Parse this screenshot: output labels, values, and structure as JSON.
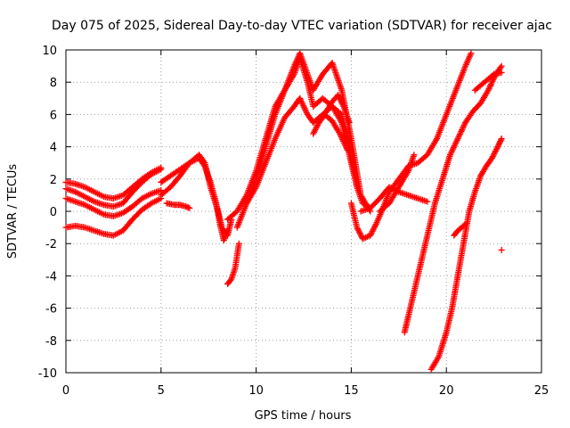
{
  "chart_data": {
    "type": "scatter",
    "title": "Day 075 of 2025, Sidereal Day-to-day VTEC variation (SDTVAR) for receiver ajac",
    "xlabel": "GPS time / hours",
    "ylabel": "SDTVAR / TECUs",
    "xlim": [
      0,
      25
    ],
    "ylim": [
      -10,
      10
    ],
    "x_ticks": [
      0,
      5,
      10,
      15,
      20,
      25
    ],
    "y_ticks": [
      -10,
      -8,
      -6,
      -4,
      -2,
      0,
      2,
      4,
      6,
      8,
      10
    ],
    "x_tick_labels": [
      "0",
      "5",
      "10",
      "15",
      "20",
      "25"
    ],
    "y_tick_labels": [
      "-10",
      "-8",
      "-6",
      "-4",
      "-2",
      "0",
      "2",
      "4",
      "6",
      "8",
      "10"
    ],
    "grid": true,
    "marker": "+",
    "color": "#ff0000",
    "series": [
      {
        "x": [
          0.0,
          0.5,
          1.0,
          1.5,
          2.0,
          2.5,
          3.0,
          3.5,
          4.0,
          4.5,
          5.0
        ],
        "y": [
          -1.0,
          -0.9,
          -1.0,
          -1.2,
          -1.4,
          -1.5,
          -1.2,
          -0.5,
          0.1,
          0.5,
          0.8
        ]
      },
      {
        "x": [
          0.0,
          0.5,
          1.0,
          1.5,
          2.0,
          2.5,
          3.0,
          3.5,
          4.0,
          4.5,
          5.0
        ],
        "y": [
          0.8,
          0.6,
          0.4,
          0.1,
          -0.2,
          -0.3,
          -0.1,
          0.3,
          0.8,
          1.1,
          1.3
        ]
      },
      {
        "x": [
          0.0,
          0.5,
          1.0,
          1.5,
          2.0,
          2.5,
          3.0,
          3.5,
          4.0,
          4.5,
          5.0
        ],
        "y": [
          1.4,
          1.2,
          0.9,
          0.6,
          0.4,
          0.3,
          0.5,
          1.2,
          1.8,
          2.3,
          2.6
        ]
      },
      {
        "x": [
          0.0,
          0.5,
          1.0,
          1.5,
          2.0,
          2.5,
          3.0,
          3.5,
          4.0,
          4.5,
          5.0
        ],
        "y": [
          1.8,
          1.7,
          1.5,
          1.2,
          0.9,
          0.8,
          1.0,
          1.5,
          2.0,
          2.4,
          2.7
        ]
      },
      {
        "x": [
          5.0,
          5.5,
          6.0,
          6.5,
          7.0,
          7.3,
          7.6,
          8.0,
          8.2,
          8.5,
          8.7
        ],
        "y": [
          1.0,
          1.5,
          2.2,
          3.0,
          3.5,
          3.0,
          1.5,
          0.0,
          -1.0,
          -1.5,
          -0.5
        ]
      },
      {
        "x": [
          5.0,
          5.5,
          6.0,
          6.5,
          7.0,
          7.3,
          7.6,
          7.9,
          8.1,
          8.3,
          8.5
        ],
        "y": [
          1.8,
          2.2,
          2.6,
          3.0,
          3.3,
          2.8,
          1.8,
          0.5,
          -0.8,
          -1.8,
          -1.2
        ]
      },
      {
        "x": [
          5.3,
          5.7,
          6.0,
          6.3,
          6.5
        ],
        "y": [
          0.5,
          0.4,
          0.4,
          0.3,
          0.2
        ]
      },
      {
        "x": [
          8.5,
          8.7,
          8.9,
          9.1
        ],
        "y": [
          -4.5,
          -4.2,
          -3.5,
          -2.0
        ]
      },
      {
        "x": [
          8.5,
          9.0,
          9.5,
          10.0,
          10.5,
          11.0,
          11.5,
          12.0,
          12.3,
          12.7,
          13.0,
          13.5,
          14.0,
          14.5,
          15.0,
          15.3,
          15.6,
          16.0
        ],
        "y": [
          -0.5,
          0.0,
          1.0,
          2.5,
          4.5,
          6.5,
          7.5,
          8.5,
          9.5,
          8.0,
          6.5,
          7.0,
          6.5,
          6.0,
          3.5,
          1.5,
          0.5,
          0.2
        ]
      },
      {
        "x": [
          9.0,
          9.5,
          10.0,
          10.5,
          11.0,
          11.5,
          12.0,
          12.3,
          12.7,
          13.0,
          13.5,
          14.0,
          14.5,
          15.0,
          15.5,
          16.0
        ],
        "y": [
          -1.0,
          0.5,
          2.0,
          4.0,
          6.0,
          7.5,
          9.0,
          9.8,
          8.5,
          7.5,
          8.5,
          9.2,
          7.5,
          4.5,
          1.0,
          0.0
        ]
      },
      {
        "x": [
          9.5,
          10.0,
          10.5,
          11.0,
          11.5,
          12.0,
          12.3,
          12.7,
          13.0,
          13.5,
          14.0,
          14.5,
          15.0,
          15.3
        ],
        "y": [
          0.5,
          1.5,
          3.0,
          4.5,
          5.8,
          6.5,
          7.0,
          6.0,
          5.5,
          6.0,
          6.5,
          5.5,
          3.0,
          1.5
        ]
      },
      {
        "x": [
          13.3,
          13.7,
          14.0,
          14.3,
          14.6,
          14.9
        ],
        "y": [
          5.5,
          6.2,
          6.8,
          7.2,
          6.5,
          5.5
        ]
      },
      {
        "x": [
          13.0,
          13.3,
          13.6,
          14.0,
          14.4,
          14.8
        ],
        "y": [
          4.8,
          5.5,
          6.0,
          5.6,
          4.8,
          3.8
        ]
      },
      {
        "x": [
          15.0,
          15.3,
          15.6,
          16.0,
          16.3,
          16.6,
          17.0,
          17.5,
          18.0,
          18.5,
          19.0,
          19.5,
          20.0,
          20.5,
          21.0,
          21.3
        ],
        "y": [
          0.5,
          -1.0,
          -1.7,
          -1.5,
          -0.8,
          0.0,
          1.2,
          2.0,
          2.8,
          3.0,
          3.5,
          4.5,
          6.0,
          7.5,
          9.0,
          9.8
        ]
      },
      {
        "x": [
          15.5,
          16.0,
          16.5,
          17.0,
          17.5,
          18.0,
          18.5,
          19.0
        ],
        "y": [
          0.0,
          0.2,
          0.8,
          1.5,
          1.2,
          1.0,
          0.8,
          0.6
        ]
      },
      {
        "x": [
          16.5,
          17.0,
          17.5,
          18.0,
          18.3
        ],
        "y": [
          0.0,
          0.5,
          1.5,
          2.5,
          3.5
        ]
      },
      {
        "x": [
          17.8,
          18.0,
          18.3,
          18.6,
          19.0,
          19.4,
          19.8,
          20.2,
          20.6,
          21.0,
          21.4,
          21.8,
          22.2,
          22.6,
          22.9
        ],
        "y": [
          -7.5,
          -6.5,
          -5.0,
          -3.5,
          -1.5,
          0.5,
          2.0,
          3.5,
          4.5,
          5.5,
          6.2,
          6.7,
          7.5,
          8.5,
          9.0
        ]
      },
      {
        "x": [
          19.2,
          19.6,
          20.0,
          20.3,
          20.6,
          20.9,
          21.2,
          21.5,
          21.8,
          22.1,
          22.4,
          22.7,
          22.9
        ],
        "y": [
          -9.8,
          -9.0,
          -7.5,
          -6.0,
          -4.0,
          -2.0,
          0.0,
          1.2,
          2.2,
          2.8,
          3.3,
          4.0,
          4.5
        ]
      },
      {
        "x": [
          20.4,
          20.6,
          20.8,
          21.0
        ],
        "y": [
          -1.5,
          -1.2,
          -1.0,
          -0.8
        ]
      },
      {
        "x": [
          21.5,
          22.0,
          22.5,
          22.9
        ],
        "y": [
          7.5,
          8.0,
          8.5,
          8.6
        ]
      },
      {
        "x": [
          22.9
        ],
        "y": [
          -2.4
        ]
      }
    ]
  }
}
